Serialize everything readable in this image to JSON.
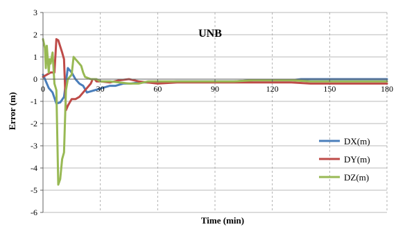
{
  "chart_data": {
    "type": "line",
    "title": "UNB",
    "xlabel": "Time (min)",
    "ylabel": "Error (m)",
    "xlim": [
      0,
      180
    ],
    "ylim": [
      -6,
      3
    ],
    "xticks": [
      0,
      30,
      60,
      90,
      120,
      150,
      180
    ],
    "yticks": [
      3,
      2,
      1,
      0,
      -1,
      -2,
      -3,
      -4,
      -5,
      -6
    ],
    "grid": true,
    "legend_position": "bottom-right",
    "series": [
      {
        "name": "DX(m)",
        "color": "#4A7EBB",
        "x": [
          0,
          1,
          3,
          5,
          7,
          9,
          11,
          13,
          15,
          17,
          19,
          21,
          23,
          25,
          27,
          29,
          31,
          33,
          35,
          38,
          42,
          46,
          50,
          55,
          60,
          70,
          80,
          90,
          100,
          110,
          120,
          130,
          135,
          140,
          150,
          160,
          170,
          180
        ],
        "y": [
          0.2,
          0.0,
          -0.4,
          -0.6,
          -1.1,
          -1.05,
          -0.8,
          0.5,
          0.3,
          0.0,
          -0.2,
          -0.3,
          -0.6,
          -0.55,
          -0.5,
          -0.45,
          -0.4,
          -0.35,
          -0.3,
          -0.3,
          -0.2,
          -0.2,
          -0.15,
          -0.15,
          -0.15,
          -0.1,
          -0.1,
          -0.1,
          -0.1,
          -0.05,
          -0.05,
          -0.05,
          0.0,
          0.0,
          0.0,
          0.0,
          0.0,
          0.0
        ]
      },
      {
        "name": "DY(m)",
        "color": "#BE4B48",
        "x": [
          0,
          2,
          4,
          6,
          7,
          8,
          10,
          11,
          12,
          13,
          15,
          17,
          19,
          21,
          23,
          25,
          26,
          27,
          28,
          30,
          35,
          40,
          45,
          50,
          60,
          70,
          80,
          90,
          100,
          110,
          120,
          130,
          140,
          150,
          160,
          170,
          180
        ],
        "y": [
          0.1,
          0.2,
          0.3,
          0.3,
          1.8,
          1.75,
          1.2,
          0.9,
          -1.4,
          -1.2,
          -0.9,
          -0.9,
          -0.8,
          -0.6,
          -0.4,
          -0.2,
          0.0,
          0.0,
          -0.1,
          -0.1,
          -0.15,
          -0.05,
          0.0,
          -0.1,
          -0.2,
          -0.15,
          -0.15,
          -0.15,
          -0.15,
          -0.15,
          -0.15,
          -0.15,
          -0.2,
          -0.2,
          -0.2,
          -0.2,
          -0.2
        ]
      },
      {
        "name": "DZ(m)",
        "color": "#98B954",
        "x": [
          0,
          1,
          1.5,
          2,
          2.5,
          3,
          3.5,
          4,
          5,
          6,
          7,
          8,
          9,
          10,
          11,
          12,
          13,
          15,
          16,
          17,
          18,
          20,
          21,
          22,
          25,
          28,
          30,
          35,
          40,
          45,
          50,
          55,
          60,
          70,
          80,
          90,
          100,
          110,
          120,
          130,
          140,
          150,
          160,
          170,
          180
        ],
        "y": [
          1.8,
          1.4,
          0.5,
          1.5,
          0.9,
          0.3,
          0.9,
          0.7,
          1.2,
          -0.2,
          -0.5,
          -4.75,
          -4.5,
          -3.6,
          -3.3,
          -0.5,
          0.0,
          0.2,
          1.0,
          0.9,
          0.8,
          0.6,
          0.3,
          0.1,
          0.0,
          0.0,
          -0.1,
          -0.1,
          -0.15,
          -0.2,
          -0.2,
          -0.1,
          -0.1,
          -0.1,
          -0.1,
          -0.1,
          -0.1,
          -0.05,
          -0.05,
          -0.05,
          -0.1,
          -0.1,
          -0.1,
          -0.1,
          -0.1
        ]
      }
    ]
  }
}
